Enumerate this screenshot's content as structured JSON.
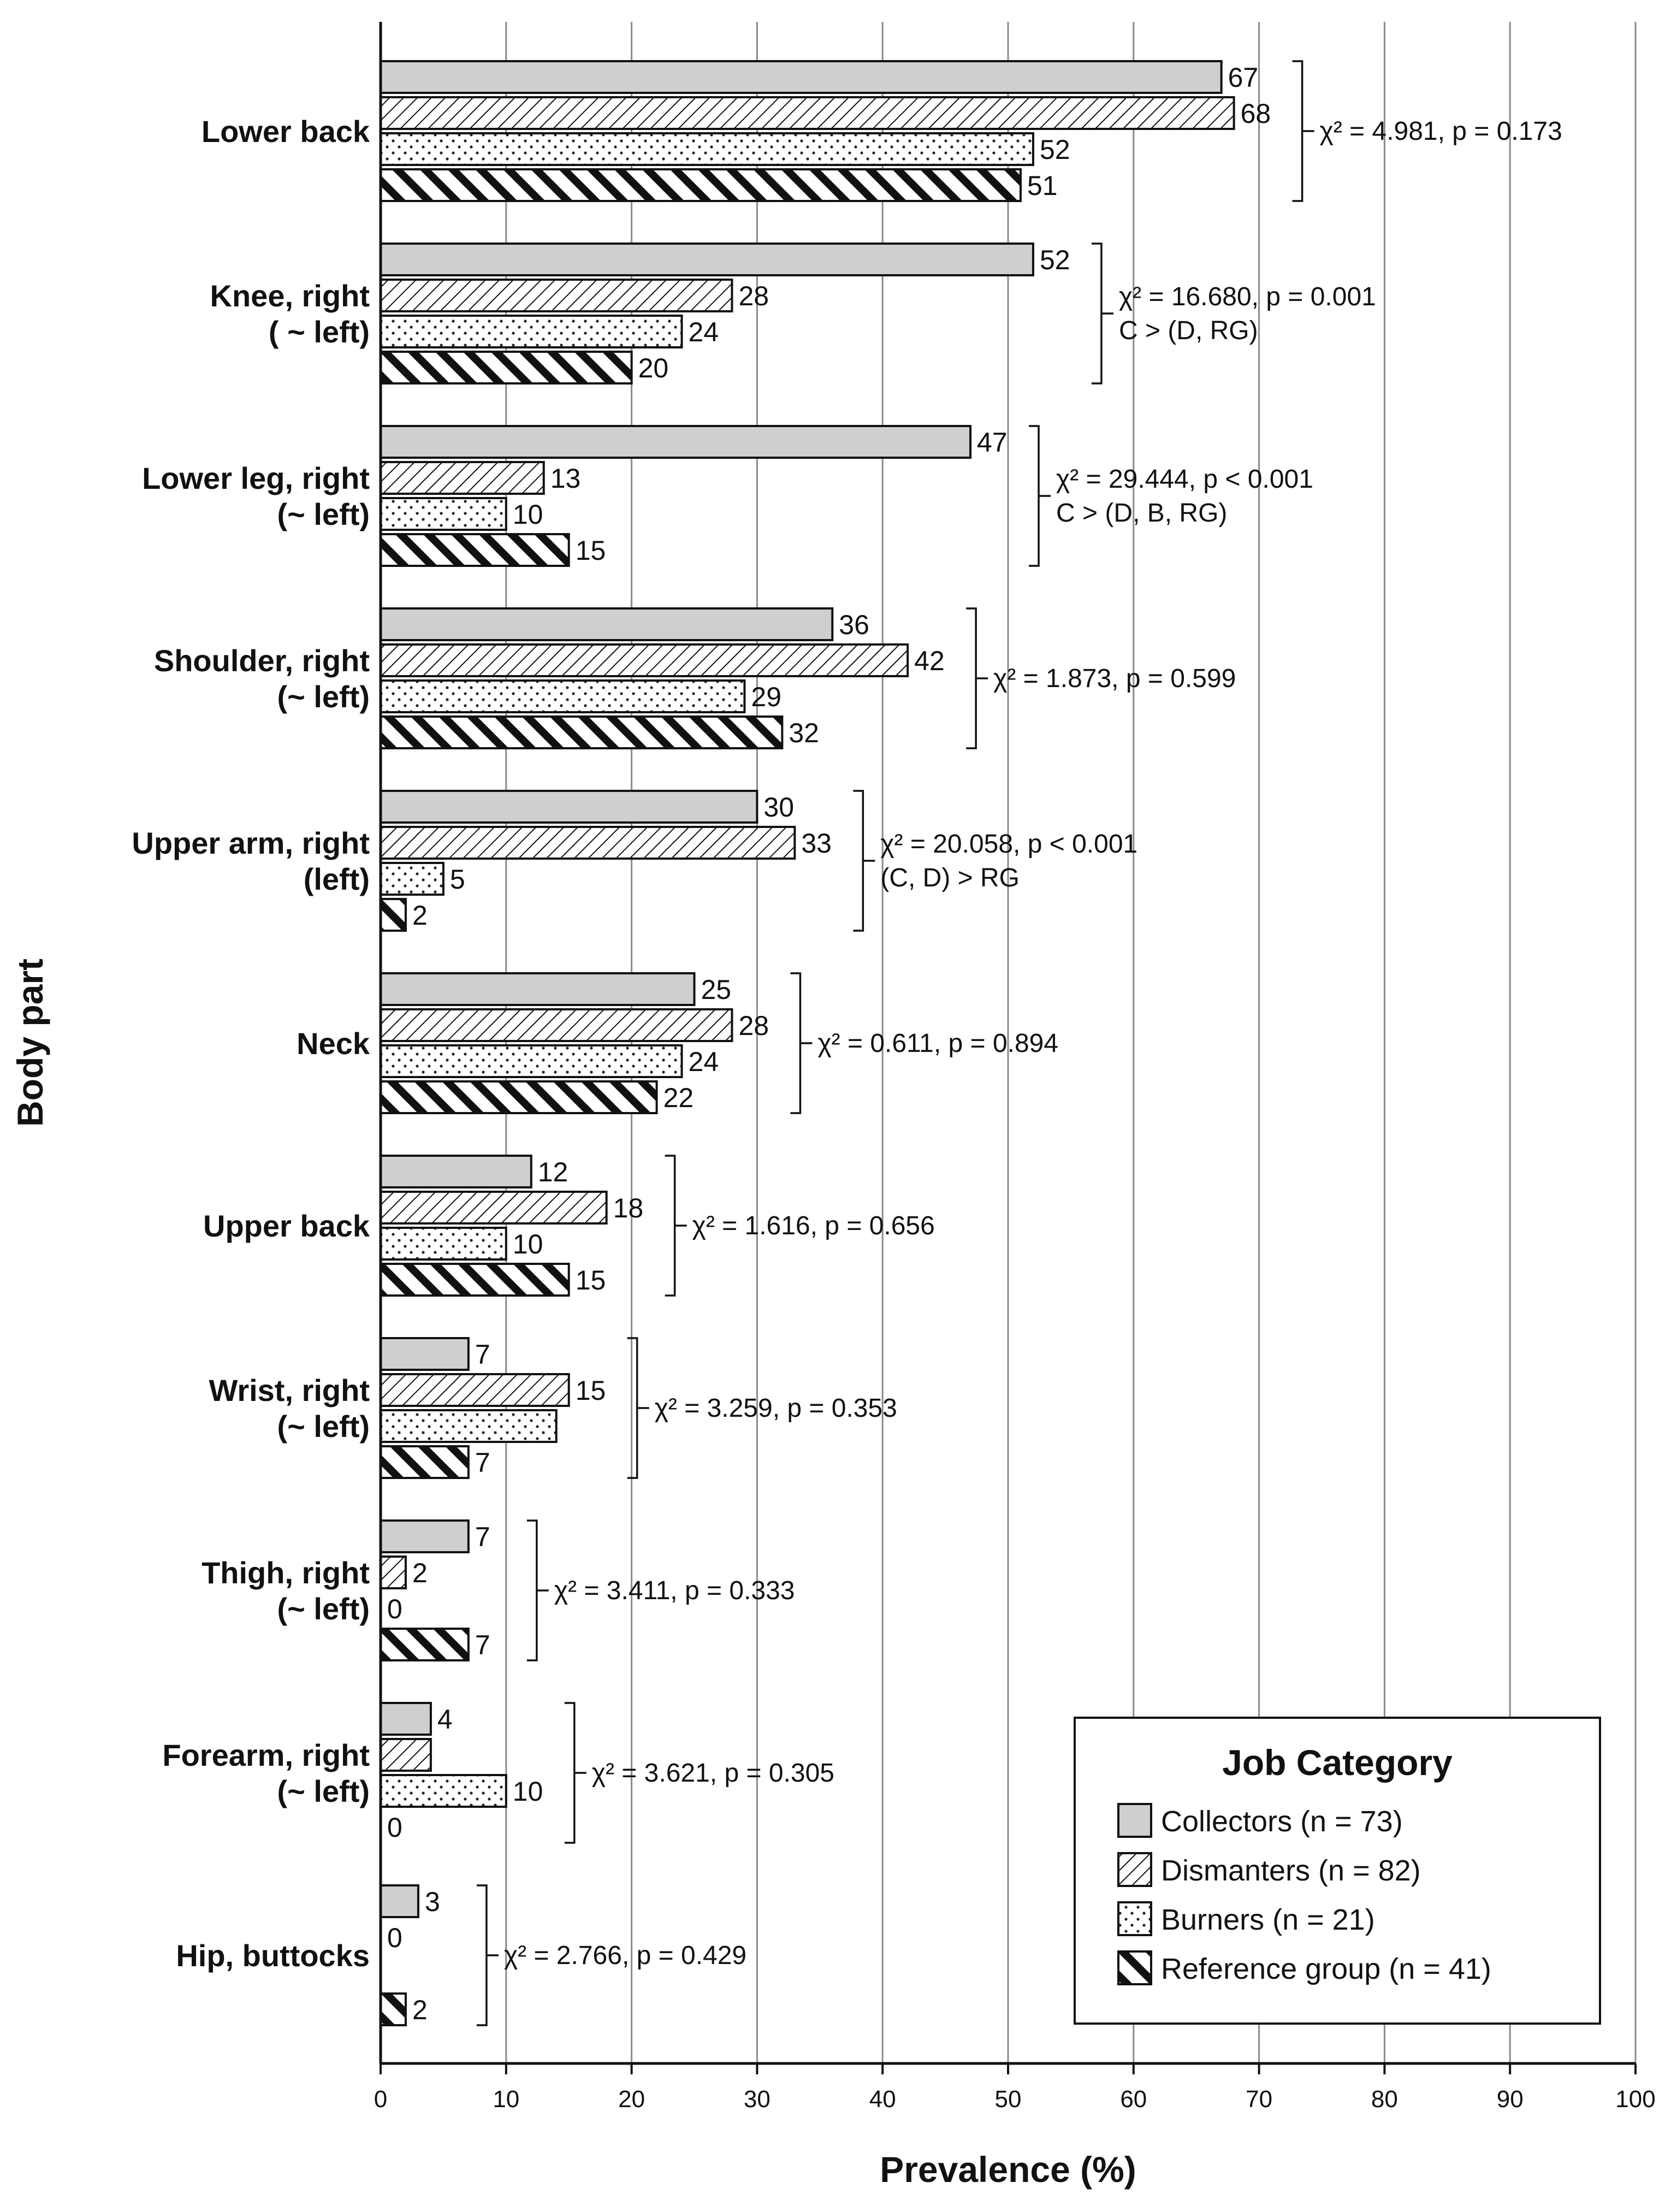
{
  "chart_data": {
    "type": "bar",
    "orientation": "horizontal",
    "xlabel": "Prevalence (%)",
    "ylabel": "Body part",
    "xlim": [
      0,
      100
    ],
    "xticks": [
      0,
      10,
      20,
      30,
      40,
      50,
      60,
      70,
      80,
      90,
      100
    ],
    "grid": "vertical",
    "legend_title": "Job Category",
    "legend_position": "bottom-right",
    "categories": [
      [
        "Lower back"
      ],
      [
        "Knee, right",
        "( ~ left)"
      ],
      [
        "Lower leg, right",
        "(~ left)"
      ],
      [
        "Shoulder, right",
        "(~ left)"
      ],
      [
        "Upper arm, right",
        "(left)"
      ],
      [
        "Neck"
      ],
      [
        "Upper back"
      ],
      [
        "Wrist, right",
        "(~ left)"
      ],
      [
        "Thigh, right",
        "(~ left)"
      ],
      [
        "Forearm, right",
        "(~ left)"
      ],
      [
        "Hip, buttocks"
      ]
    ],
    "series": [
      {
        "name": "Collectors (n = 73)",
        "pattern": "solid-gray",
        "values": [
          67,
          52,
          47,
          36,
          30,
          25,
          12,
          7,
          7,
          4,
          3
        ],
        "labels": [
          "67",
          "52",
          "47",
          "36",
          "30",
          "25",
          "12",
          "7",
          "7",
          "4",
          "3"
        ]
      },
      {
        "name": "Dismanters (n = 82)",
        "pattern": "fine-diagonal",
        "values": [
          68,
          28,
          13,
          42,
          33,
          28,
          18,
          15,
          2,
          4,
          0
        ],
        "labels": [
          "68",
          "28",
          "13",
          "42",
          "33",
          "28",
          "18",
          "15",
          "2",
          "",
          "0"
        ]
      },
      {
        "name": "Burners (n = 21)",
        "pattern": "dots",
        "values": [
          52,
          24,
          10,
          29,
          5,
          24,
          10,
          14,
          0,
          10,
          null
        ],
        "labels": [
          "52",
          "24",
          "10",
          "29",
          "5",
          "24",
          "10",
          "",
          "0",
          "10",
          ""
        ]
      },
      {
        "name": "Reference group (n = 41)",
        "pattern": "thick-diagonal",
        "values": [
          51,
          20,
          15,
          32,
          2,
          22,
          15,
          7,
          7,
          0,
          2
        ],
        "labels": [
          "51",
          "20",
          "15",
          "32",
          "2",
          "22",
          "15",
          "7",
          "7",
          "0",
          "2"
        ]
      }
    ],
    "annotations": [
      [
        "χ² = 4.981, p = 0.173"
      ],
      [
        "χ² = 16.680, p = 0.001",
        "C > (D, RG)"
      ],
      [
        "χ² = 29.444, p < 0.001",
        "C > (D, B, RG)"
      ],
      [
        "χ² = 1.873, p = 0.599"
      ],
      [
        "χ² = 20.058, p < 0.001",
        "(C, D) > RG"
      ],
      [
        "χ² = 0.611, p = 0.894"
      ],
      [
        "χ² = 1.616, p = 0.656"
      ],
      [
        "χ² = 3.259, p = 0.353"
      ],
      [
        "χ² = 3.411, p = 0.333"
      ],
      [
        "χ² = 3.621, p = 0.305"
      ],
      [
        "χ² = 2.766, p = 0.429"
      ]
    ]
  }
}
